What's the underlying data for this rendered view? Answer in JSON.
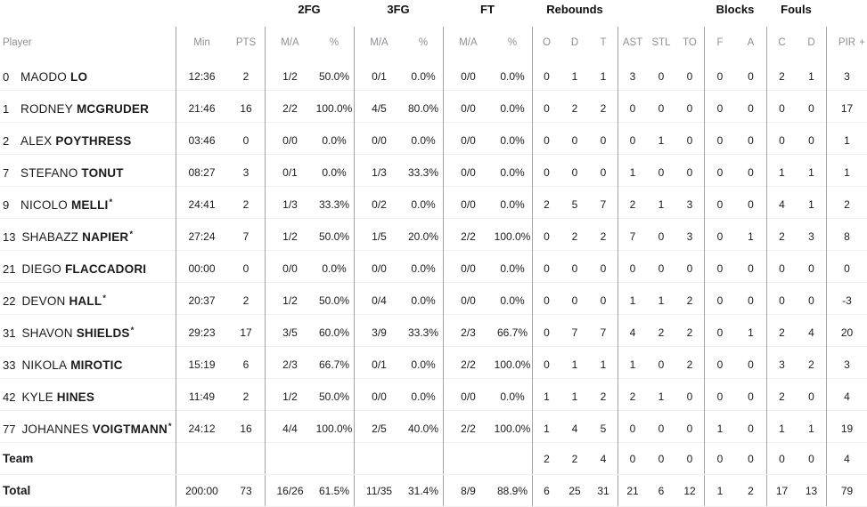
{
  "table": {
    "group_headers": {
      "fg2": "2FG",
      "fg3": "3FG",
      "ft": "FT",
      "rebounds": "Rebounds",
      "blocks": "Blocks",
      "fouls": "Fouls"
    },
    "columns": {
      "player": "Player",
      "min": "Min",
      "pts": "PTS",
      "ma": "M/A",
      "pct": "%",
      "o": "O",
      "d": "D",
      "t": "T",
      "ast": "AST",
      "stl": "STL",
      "to": "TO",
      "f": "F",
      "a": "A",
      "c": "C",
      "pir": "PIR",
      "plus": "+"
    },
    "rows": [
      {
        "num": "0",
        "first": "MAODO",
        "last": "LO",
        "star": "",
        "min": "12:36",
        "pts": "2",
        "fg2_ma": "1/2",
        "fg2_pct": "50.0%",
        "fg3_ma": "0/1",
        "fg3_pct": "0.0%",
        "ft_ma": "0/0",
        "ft_pct": "0.0%",
        "o": "0",
        "d": "1",
        "t": "1",
        "ast": "3",
        "stl": "0",
        "to": "0",
        "bf": "0",
        "ba": "0",
        "fc": "2",
        "fd": "1",
        "pir": "3"
      },
      {
        "num": "1",
        "first": "RODNEY",
        "last": "MCGRUDER",
        "star": "",
        "min": "21:46",
        "pts": "16",
        "fg2_ma": "2/2",
        "fg2_pct": "100.0%",
        "fg3_ma": "4/5",
        "fg3_pct": "80.0%",
        "ft_ma": "0/0",
        "ft_pct": "0.0%",
        "o": "0",
        "d": "2",
        "t": "2",
        "ast": "0",
        "stl": "0",
        "to": "0",
        "bf": "0",
        "ba": "0",
        "fc": "0",
        "fd": "0",
        "pir": "17"
      },
      {
        "num": "2",
        "first": "ALEX",
        "last": "POYTHRESS",
        "star": "",
        "min": "03:46",
        "pts": "0",
        "fg2_ma": "0/0",
        "fg2_pct": "0.0%",
        "fg3_ma": "0/0",
        "fg3_pct": "0.0%",
        "ft_ma": "0/0",
        "ft_pct": "0.0%",
        "o": "0",
        "d": "0",
        "t": "0",
        "ast": "0",
        "stl": "1",
        "to": "0",
        "bf": "0",
        "ba": "0",
        "fc": "0",
        "fd": "0",
        "pir": "1"
      },
      {
        "num": "7",
        "first": "STEFANO",
        "last": "TONUT",
        "star": "",
        "min": "08:27",
        "pts": "3",
        "fg2_ma": "0/1",
        "fg2_pct": "0.0%",
        "fg3_ma": "1/3",
        "fg3_pct": "33.3%",
        "ft_ma": "0/0",
        "ft_pct": "0.0%",
        "o": "0",
        "d": "0",
        "t": "0",
        "ast": "1",
        "stl": "0",
        "to": "0",
        "bf": "0",
        "ba": "0",
        "fc": "1",
        "fd": "1",
        "pir": "1"
      },
      {
        "num": "9",
        "first": "NICOLO",
        "last": "MELLI",
        "star": "*",
        "min": "24:41",
        "pts": "2",
        "fg2_ma": "1/3",
        "fg2_pct": "33.3%",
        "fg3_ma": "0/2",
        "fg3_pct": "0.0%",
        "ft_ma": "0/0",
        "ft_pct": "0.0%",
        "o": "2",
        "d": "5",
        "t": "7",
        "ast": "2",
        "stl": "1",
        "to": "3",
        "bf": "0",
        "ba": "0",
        "fc": "4",
        "fd": "1",
        "pir": "2"
      },
      {
        "num": "13",
        "first": "SHABAZZ",
        "last": "NAPIER",
        "star": "*",
        "min": "27:24",
        "pts": "7",
        "fg2_ma": "1/2",
        "fg2_pct": "50.0%",
        "fg3_ma": "1/5",
        "fg3_pct": "20.0%",
        "ft_ma": "2/2",
        "ft_pct": "100.0%",
        "o": "0",
        "d": "2",
        "t": "2",
        "ast": "7",
        "stl": "0",
        "to": "3",
        "bf": "0",
        "ba": "1",
        "fc": "2",
        "fd": "3",
        "pir": "8"
      },
      {
        "num": "21",
        "first": "DIEGO",
        "last": "FLACCADORI",
        "star": "",
        "min": "00:00",
        "pts": "0",
        "fg2_ma": "0/0",
        "fg2_pct": "0.0%",
        "fg3_ma": "0/0",
        "fg3_pct": "0.0%",
        "ft_ma": "0/0",
        "ft_pct": "0.0%",
        "o": "0",
        "d": "0",
        "t": "0",
        "ast": "0",
        "stl": "0",
        "to": "0",
        "bf": "0",
        "ba": "0",
        "fc": "0",
        "fd": "0",
        "pir": "0"
      },
      {
        "num": "22",
        "first": "DEVON",
        "last": "HALL",
        "star": "*",
        "min": "20:37",
        "pts": "2",
        "fg2_ma": "1/2",
        "fg2_pct": "50.0%",
        "fg3_ma": "0/4",
        "fg3_pct": "0.0%",
        "ft_ma": "0/0",
        "ft_pct": "0.0%",
        "o": "0",
        "d": "0",
        "t": "0",
        "ast": "1",
        "stl": "1",
        "to": "2",
        "bf": "0",
        "ba": "0",
        "fc": "0",
        "fd": "0",
        "pir": "-3"
      },
      {
        "num": "31",
        "first": "SHAVON",
        "last": "SHIELDS",
        "star": "*",
        "min": "29:23",
        "pts": "17",
        "fg2_ma": "3/5",
        "fg2_pct": "60.0%",
        "fg3_ma": "3/9",
        "fg3_pct": "33.3%",
        "ft_ma": "2/3",
        "ft_pct": "66.7%",
        "o": "0",
        "d": "7",
        "t": "7",
        "ast": "4",
        "stl": "2",
        "to": "2",
        "bf": "0",
        "ba": "1",
        "fc": "2",
        "fd": "4",
        "pir": "20"
      },
      {
        "num": "33",
        "first": "NIKOLA",
        "last": "MIROTIC",
        "star": "",
        "min": "15:19",
        "pts": "6",
        "fg2_ma": "2/3",
        "fg2_pct": "66.7%",
        "fg3_ma": "0/1",
        "fg3_pct": "0.0%",
        "ft_ma": "2/2",
        "ft_pct": "100.0%",
        "o": "0",
        "d": "1",
        "t": "1",
        "ast": "1",
        "stl": "0",
        "to": "2",
        "bf": "0",
        "ba": "0",
        "fc": "3",
        "fd": "2",
        "pir": "3"
      },
      {
        "num": "42",
        "first": "KYLE",
        "last": "HINES",
        "star": "",
        "min": "11:49",
        "pts": "2",
        "fg2_ma": "1/2",
        "fg2_pct": "50.0%",
        "fg3_ma": "0/0",
        "fg3_pct": "0.0%",
        "ft_ma": "0/0",
        "ft_pct": "0.0%",
        "o": "1",
        "d": "1",
        "t": "2",
        "ast": "2",
        "stl": "1",
        "to": "0",
        "bf": "0",
        "ba": "0",
        "fc": "2",
        "fd": "0",
        "pir": "4"
      },
      {
        "num": "77",
        "first": "JOHANNES",
        "last": "VOIGTMANN",
        "star": "*",
        "min": "24:12",
        "pts": "16",
        "fg2_ma": "4/4",
        "fg2_pct": "100.0%",
        "fg3_ma": "2/5",
        "fg3_pct": "40.0%",
        "ft_ma": "2/2",
        "ft_pct": "100.0%",
        "o": "1",
        "d": "4",
        "t": "5",
        "ast": "0",
        "stl": "0",
        "to": "0",
        "bf": "1",
        "ba": "0",
        "fc": "1",
        "fd": "1",
        "pir": "19"
      },
      {
        "label": "Team",
        "min": "",
        "pts": "",
        "fg2_ma": "",
        "fg2_pct": "",
        "fg3_ma": "",
        "fg3_pct": "",
        "ft_ma": "",
        "ft_pct": "",
        "o": "2",
        "d": "2",
        "t": "4",
        "ast": "0",
        "stl": "0",
        "to": "0",
        "bf": "0",
        "ba": "0",
        "fc": "0",
        "fd": "0",
        "pir": "4"
      },
      {
        "label": "Total",
        "min": "200:00",
        "pts": "73",
        "fg2_ma": "16/26",
        "fg2_pct": "61.5%",
        "fg3_ma": "11/35",
        "fg3_pct": "31.4%",
        "ft_ma": "8/9",
        "ft_pct": "88.9%",
        "o": "6",
        "d": "25",
        "t": "31",
        "ast": "21",
        "stl": "6",
        "to": "12",
        "bf": "1",
        "ba": "2",
        "fc": "17",
        "fd": "13",
        "pir": "79"
      }
    ]
  }
}
